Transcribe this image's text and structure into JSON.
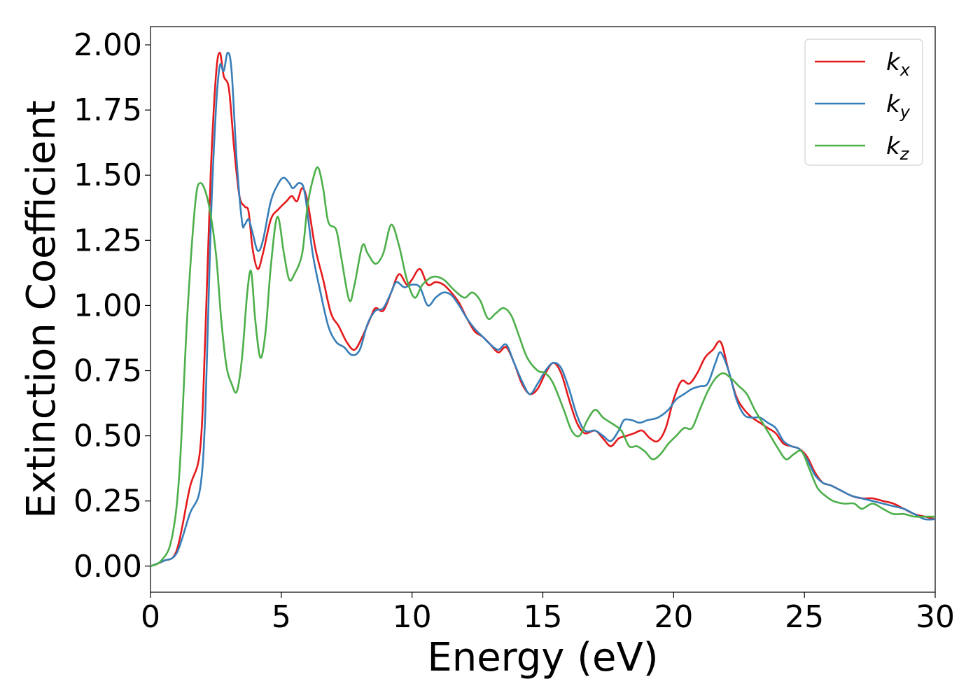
{
  "chart_data": {
    "type": "line",
    "xlabel": "Energy (eV)",
    "ylabel": "Extinction Coefficient",
    "xlim": [
      0,
      30
    ],
    "ylim": [
      -0.1,
      2.07
    ],
    "xticks": [
      0,
      5,
      10,
      15,
      20,
      25,
      30
    ],
    "xtick_labels": [
      "0",
      "5",
      "10",
      "15",
      "20",
      "25",
      "30"
    ],
    "yticks": [
      0,
      0.25,
      0.5,
      0.75,
      1.0,
      1.25,
      1.5,
      1.75,
      2.0
    ],
    "ytick_labels": [
      "0.00",
      "0.25",
      "0.50",
      "0.75",
      "1.00",
      "1.25",
      "1.50",
      "1.75",
      "2.00"
    ],
    "grid": false,
    "legend_position": "top-right",
    "series": [
      {
        "name": "k",
        "subscript": "x",
        "color": "#e41a1c",
        "points": [
          [
            0,
            0.0
          ],
          [
            0.5,
            0.02
          ],
          [
            1.0,
            0.06
          ],
          [
            1.5,
            0.3
          ],
          [
            1.9,
            0.45
          ],
          [
            2.1,
            0.9
          ],
          [
            2.3,
            1.5
          ],
          [
            2.5,
            1.88
          ],
          [
            2.65,
            1.97
          ],
          [
            2.8,
            1.88
          ],
          [
            3.0,
            1.83
          ],
          [
            3.2,
            1.6
          ],
          [
            3.4,
            1.42
          ],
          [
            3.6,
            1.38
          ],
          [
            3.75,
            1.36
          ],
          [
            3.9,
            1.22
          ],
          [
            4.1,
            1.14
          ],
          [
            4.3,
            1.2
          ],
          [
            4.6,
            1.33
          ],
          [
            4.9,
            1.37
          ],
          [
            5.2,
            1.4
          ],
          [
            5.4,
            1.42
          ],
          [
            5.6,
            1.4
          ],
          [
            5.8,
            1.45
          ],
          [
            6.0,
            1.4
          ],
          [
            6.3,
            1.22
          ],
          [
            6.6,
            1.1
          ],
          [
            6.9,
            0.97
          ],
          [
            7.2,
            0.92
          ],
          [
            7.5,
            0.86
          ],
          [
            7.8,
            0.83
          ],
          [
            8.1,
            0.88
          ],
          [
            8.4,
            0.95
          ],
          [
            8.6,
            0.99
          ],
          [
            8.9,
            0.98
          ],
          [
            9.2,
            1.05
          ],
          [
            9.5,
            1.12
          ],
          [
            9.8,
            1.08
          ],
          [
            10.0,
            1.1
          ],
          [
            10.3,
            1.14
          ],
          [
            10.6,
            1.08
          ],
          [
            10.9,
            1.09
          ],
          [
            11.2,
            1.08
          ],
          [
            11.5,
            1.05
          ],
          [
            11.8,
            1.01
          ],
          [
            12.1,
            0.95
          ],
          [
            12.4,
            0.9
          ],
          [
            12.7,
            0.88
          ],
          [
            13.0,
            0.85
          ],
          [
            13.3,
            0.82
          ],
          [
            13.6,
            0.84
          ],
          [
            13.9,
            0.78
          ],
          [
            14.2,
            0.7
          ],
          [
            14.5,
            0.66
          ],
          [
            14.8,
            0.68
          ],
          [
            15.1,
            0.74
          ],
          [
            15.4,
            0.78
          ],
          [
            15.7,
            0.74
          ],
          [
            16.0,
            0.64
          ],
          [
            16.3,
            0.55
          ],
          [
            16.6,
            0.51
          ],
          [
            17.0,
            0.52
          ],
          [
            17.3,
            0.49
          ],
          [
            17.6,
            0.46
          ],
          [
            17.9,
            0.49
          ],
          [
            18.2,
            0.5
          ],
          [
            18.5,
            0.51
          ],
          [
            18.8,
            0.52
          ],
          [
            19.1,
            0.49
          ],
          [
            19.4,
            0.48
          ],
          [
            19.7,
            0.53
          ],
          [
            20.0,
            0.64
          ],
          [
            20.3,
            0.71
          ],
          [
            20.6,
            0.7
          ],
          [
            20.9,
            0.74
          ],
          [
            21.2,
            0.8
          ],
          [
            21.5,
            0.83
          ],
          [
            21.8,
            0.86
          ],
          [
            22.1,
            0.75
          ],
          [
            22.4,
            0.65
          ],
          [
            22.7,
            0.6
          ],
          [
            23.0,
            0.57
          ],
          [
            23.3,
            0.55
          ],
          [
            23.6,
            0.53
          ],
          [
            23.9,
            0.51
          ],
          [
            24.2,
            0.47
          ],
          [
            24.5,
            0.46
          ],
          [
            24.8,
            0.45
          ],
          [
            25.1,
            0.42
          ],
          [
            25.4,
            0.36
          ],
          [
            25.7,
            0.32
          ],
          [
            26.0,
            0.31
          ],
          [
            26.4,
            0.29
          ],
          [
            26.8,
            0.27
          ],
          [
            27.2,
            0.26
          ],
          [
            27.6,
            0.26
          ],
          [
            28.0,
            0.25
          ],
          [
            28.4,
            0.24
          ],
          [
            28.8,
            0.22
          ],
          [
            29.2,
            0.2
          ],
          [
            29.6,
            0.19
          ],
          [
            30.0,
            0.18
          ]
        ]
      },
      {
        "name": "k",
        "subscript": "y",
        "color": "#377eb8",
        "points": [
          [
            0,
            0.0
          ],
          [
            0.5,
            0.02
          ],
          [
            1.0,
            0.05
          ],
          [
            1.5,
            0.2
          ],
          [
            1.9,
            0.3
          ],
          [
            2.1,
            0.6
          ],
          [
            2.3,
            1.3
          ],
          [
            2.5,
            1.75
          ],
          [
            2.65,
            1.92
          ],
          [
            2.8,
            1.9
          ],
          [
            2.95,
            1.97
          ],
          [
            3.1,
            1.9
          ],
          [
            3.3,
            1.55
          ],
          [
            3.5,
            1.32
          ],
          [
            3.6,
            1.31
          ],
          [
            3.75,
            1.33
          ],
          [
            3.9,
            1.28
          ],
          [
            4.1,
            1.21
          ],
          [
            4.3,
            1.25
          ],
          [
            4.6,
            1.4
          ],
          [
            4.9,
            1.47
          ],
          [
            5.1,
            1.49
          ],
          [
            5.3,
            1.47
          ],
          [
            5.45,
            1.45
          ],
          [
            5.7,
            1.47
          ],
          [
            5.9,
            1.43
          ],
          [
            6.2,
            1.2
          ],
          [
            6.5,
            1.05
          ],
          [
            6.8,
            0.92
          ],
          [
            7.1,
            0.86
          ],
          [
            7.4,
            0.84
          ],
          [
            7.7,
            0.81
          ],
          [
            8.0,
            0.83
          ],
          [
            8.3,
            0.93
          ],
          [
            8.6,
            0.98
          ],
          [
            8.9,
            0.99
          ],
          [
            9.2,
            1.05
          ],
          [
            9.4,
            1.09
          ],
          [
            9.7,
            1.07
          ],
          [
            10.0,
            1.08
          ],
          [
            10.3,
            1.07
          ],
          [
            10.6,
            1.0
          ],
          [
            10.9,
            1.03
          ],
          [
            11.2,
            1.05
          ],
          [
            11.5,
            1.04
          ],
          [
            11.8,
            1.0
          ],
          [
            12.1,
            0.95
          ],
          [
            12.4,
            0.91
          ],
          [
            12.7,
            0.88
          ],
          [
            13.0,
            0.85
          ],
          [
            13.3,
            0.83
          ],
          [
            13.6,
            0.85
          ],
          [
            13.9,
            0.78
          ],
          [
            14.2,
            0.71
          ],
          [
            14.5,
            0.66
          ],
          [
            14.8,
            0.7
          ],
          [
            15.1,
            0.75
          ],
          [
            15.4,
            0.78
          ],
          [
            15.7,
            0.76
          ],
          [
            16.0,
            0.68
          ],
          [
            16.3,
            0.58
          ],
          [
            16.6,
            0.52
          ],
          [
            17.0,
            0.52
          ],
          [
            17.3,
            0.5
          ],
          [
            17.6,
            0.48
          ],
          [
            17.9,
            0.52
          ],
          [
            18.1,
            0.56
          ],
          [
            18.4,
            0.56
          ],
          [
            18.7,
            0.55
          ],
          [
            19.0,
            0.56
          ],
          [
            19.4,
            0.57
          ],
          [
            19.8,
            0.6
          ],
          [
            20.1,
            0.64
          ],
          [
            20.4,
            0.66
          ],
          [
            20.7,
            0.68
          ],
          [
            21.0,
            0.69
          ],
          [
            21.3,
            0.7
          ],
          [
            21.6,
            0.78
          ],
          [
            21.8,
            0.82
          ],
          [
            22.1,
            0.75
          ],
          [
            22.4,
            0.64
          ],
          [
            22.7,
            0.58
          ],
          [
            23.0,
            0.57
          ],
          [
            23.3,
            0.57
          ],
          [
            23.6,
            0.55
          ],
          [
            23.9,
            0.53
          ],
          [
            24.2,
            0.48
          ],
          [
            24.5,
            0.46
          ],
          [
            24.8,
            0.45
          ],
          [
            25.1,
            0.41
          ],
          [
            25.4,
            0.35
          ],
          [
            25.7,
            0.32
          ],
          [
            26.0,
            0.31
          ],
          [
            26.4,
            0.29
          ],
          [
            26.8,
            0.27
          ],
          [
            27.2,
            0.26
          ],
          [
            27.6,
            0.25
          ],
          [
            28.0,
            0.24
          ],
          [
            28.4,
            0.23
          ],
          [
            28.8,
            0.22
          ],
          [
            29.2,
            0.2
          ],
          [
            29.6,
            0.18
          ],
          [
            30.0,
            0.18
          ]
        ]
      },
      {
        "name": "k",
        "subscript": "z",
        "color": "#4daf4a",
        "points": [
          [
            0,
            0.0
          ],
          [
            0.4,
            0.02
          ],
          [
            0.8,
            0.1
          ],
          [
            1.1,
            0.35
          ],
          [
            1.4,
            0.95
          ],
          [
            1.7,
            1.38
          ],
          [
            1.9,
            1.47
          ],
          [
            2.2,
            1.4
          ],
          [
            2.5,
            1.2
          ],
          [
            2.7,
            0.95
          ],
          [
            2.9,
            0.77
          ],
          [
            3.1,
            0.7
          ],
          [
            3.3,
            0.67
          ],
          [
            3.5,
            0.8
          ],
          [
            3.7,
            1.05
          ],
          [
            3.85,
            1.13
          ],
          [
            4.0,
            0.95
          ],
          [
            4.2,
            0.8
          ],
          [
            4.4,
            0.9
          ],
          [
            4.6,
            1.15
          ],
          [
            4.85,
            1.34
          ],
          [
            5.1,
            1.2
          ],
          [
            5.3,
            1.1
          ],
          [
            5.5,
            1.12
          ],
          [
            5.8,
            1.2
          ],
          [
            6.0,
            1.38
          ],
          [
            6.2,
            1.48
          ],
          [
            6.4,
            1.53
          ],
          [
            6.6,
            1.45
          ],
          [
            6.8,
            1.32
          ],
          [
            7.1,
            1.29
          ],
          [
            7.3,
            1.18
          ],
          [
            7.6,
            1.02
          ],
          [
            7.8,
            1.08
          ],
          [
            8.1,
            1.23
          ],
          [
            8.3,
            1.2
          ],
          [
            8.6,
            1.16
          ],
          [
            8.9,
            1.2
          ],
          [
            9.2,
            1.31
          ],
          [
            9.5,
            1.23
          ],
          [
            9.8,
            1.1
          ],
          [
            10.1,
            1.03
          ],
          [
            10.4,
            1.08
          ],
          [
            10.8,
            1.11
          ],
          [
            11.2,
            1.1
          ],
          [
            11.6,
            1.06
          ],
          [
            12.0,
            1.03
          ],
          [
            12.3,
            1.05
          ],
          [
            12.6,
            1.02
          ],
          [
            12.9,
            0.95
          ],
          [
            13.2,
            0.97
          ],
          [
            13.5,
            0.99
          ],
          [
            13.8,
            0.96
          ],
          [
            14.1,
            0.88
          ],
          [
            14.4,
            0.8
          ],
          [
            14.8,
            0.75
          ],
          [
            15.1,
            0.74
          ],
          [
            15.4,
            0.7
          ],
          [
            15.8,
            0.6
          ],
          [
            16.1,
            0.52
          ],
          [
            16.4,
            0.5
          ],
          [
            16.7,
            0.56
          ],
          [
            17.0,
            0.6
          ],
          [
            17.3,
            0.57
          ],
          [
            17.6,
            0.55
          ],
          [
            18.0,
            0.52
          ],
          [
            18.3,
            0.46
          ],
          [
            18.6,
            0.46
          ],
          [
            18.9,
            0.44
          ],
          [
            19.2,
            0.41
          ],
          [
            19.5,
            0.43
          ],
          [
            19.8,
            0.47
          ],
          [
            20.1,
            0.5
          ],
          [
            20.4,
            0.53
          ],
          [
            20.7,
            0.53
          ],
          [
            21.0,
            0.6
          ],
          [
            21.3,
            0.67
          ],
          [
            21.6,
            0.72
          ],
          [
            21.9,
            0.74
          ],
          [
            22.2,
            0.72
          ],
          [
            22.5,
            0.69
          ],
          [
            22.8,
            0.66
          ],
          [
            23.1,
            0.6
          ],
          [
            23.4,
            0.55
          ],
          [
            23.7,
            0.5
          ],
          [
            24.0,
            0.45
          ],
          [
            24.3,
            0.41
          ],
          [
            24.6,
            0.43
          ],
          [
            24.9,
            0.44
          ],
          [
            25.2,
            0.37
          ],
          [
            25.5,
            0.3
          ],
          [
            25.8,
            0.27
          ],
          [
            26.1,
            0.25
          ],
          [
            26.5,
            0.24
          ],
          [
            26.9,
            0.24
          ],
          [
            27.2,
            0.22
          ],
          [
            27.6,
            0.24
          ],
          [
            28.0,
            0.22
          ],
          [
            28.4,
            0.2
          ],
          [
            28.8,
            0.2
          ],
          [
            29.2,
            0.19
          ],
          [
            29.6,
            0.19
          ],
          [
            30.0,
            0.19
          ]
        ]
      }
    ]
  }
}
